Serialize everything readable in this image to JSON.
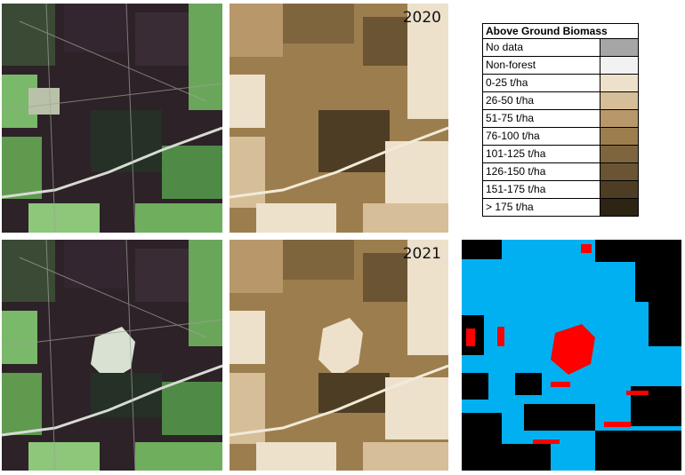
{
  "maps": {
    "year_top": "2020",
    "year_bottom": "2021"
  },
  "legend": {
    "title": "Above Ground Biomass",
    "items": [
      {
        "label": "No data",
        "color": "#a6a6a6"
      },
      {
        "label": "Non-forest",
        "color": "#f2f2f2"
      },
      {
        "label": "0-25 t/ha",
        "color": "#ede1cc"
      },
      {
        "label": "26-50 t/ha",
        "color": "#d6be98"
      },
      {
        "label": "51-75 t/ha",
        "color": "#b8976a"
      },
      {
        "label": "76-100 t/ha",
        "color": "#9c7e4e"
      },
      {
        "label": "101-125 t/ha",
        "color": "#7f653e"
      },
      {
        "label": "126-150 t/ha",
        "color": "#6a5433"
      },
      {
        "label": "151-175 t/ha",
        "color": "#4d3d25"
      },
      {
        "label": "> 175 t/ha",
        "color": "#2e2414"
      }
    ]
  },
  "change_map_colors": {
    "stable_forest": "#00b0f0",
    "non_forest": "#000000",
    "forest_loss": "#ff0000"
  },
  "satellite_colors": {
    "dark": "#2a1f26",
    "forest": "#3c5a32",
    "bright": "#7fc36a",
    "field": "#c9c7b8"
  }
}
